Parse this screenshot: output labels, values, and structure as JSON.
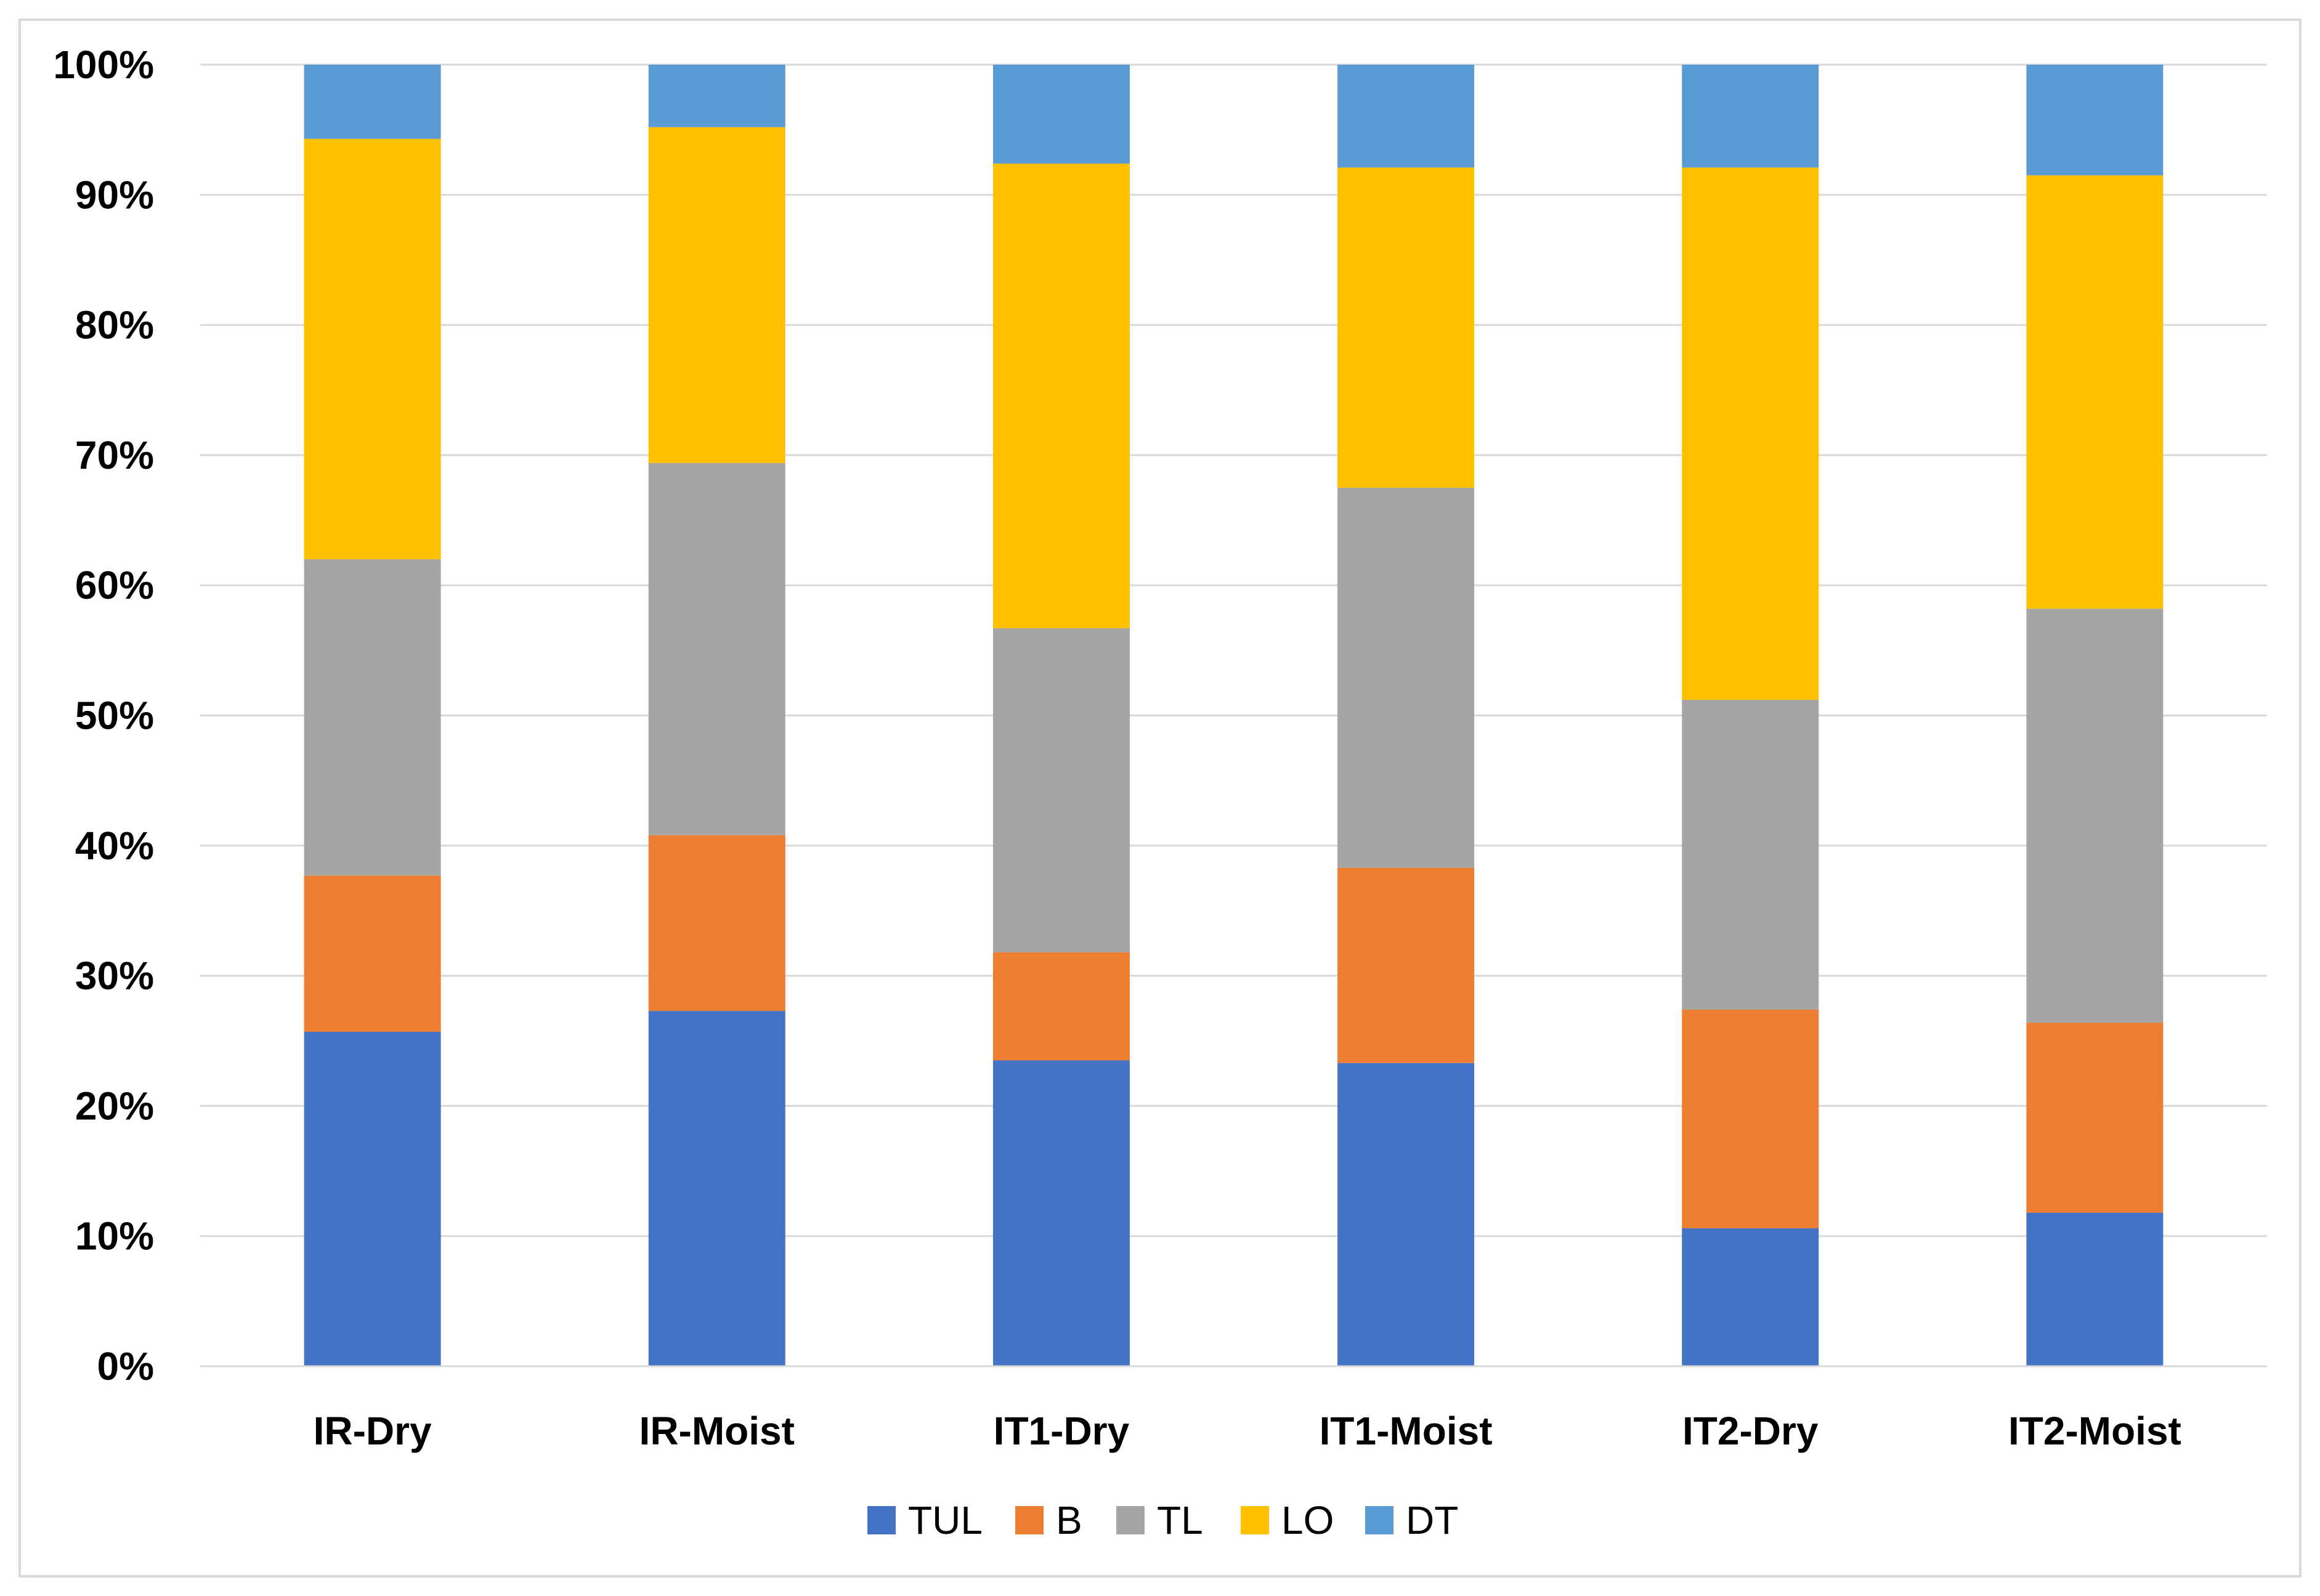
{
  "chart_data": {
    "type": "bar",
    "stacked": true,
    "percent_stacked": true,
    "title": "",
    "xlabel": "",
    "ylabel": "",
    "ylim": [
      0,
      100
    ],
    "y_ticks": [
      "0%",
      "10%",
      "20%",
      "30%",
      "40%",
      "50%",
      "60%",
      "70%",
      "80%",
      "90%",
      "100%"
    ],
    "grid": true,
    "legend_position": "bottom",
    "categories": [
      "IR-Dry",
      "IR-Moist",
      "IT1-Dry",
      "IT1-Moist",
      "IT2-Dry",
      "IT2-Moist"
    ],
    "series": [
      {
        "name": "TUL",
        "color": "#4472C4",
        "values": [
          25.7,
          27.3,
          23.5,
          23.3,
          10.6,
          11.8
        ]
      },
      {
        "name": "B",
        "color": "#ED7D31",
        "values": [
          12.0,
          13.5,
          8.3,
          15.0,
          16.8,
          14.6
        ]
      },
      {
        "name": "TL",
        "color": "#A5A5A5",
        "values": [
          24.3,
          28.6,
          24.9,
          29.2,
          23.8,
          31.8
        ]
      },
      {
        "name": "LO",
        "color": "#FFC000",
        "values": [
          32.3,
          25.8,
          35.7,
          24.6,
          40.9,
          33.3
        ]
      },
      {
        "name": "DT",
        "color": "#5B9BD5",
        "values": [
          5.7,
          4.8,
          7.6,
          7.9,
          7.9,
          8.5
        ]
      }
    ]
  }
}
